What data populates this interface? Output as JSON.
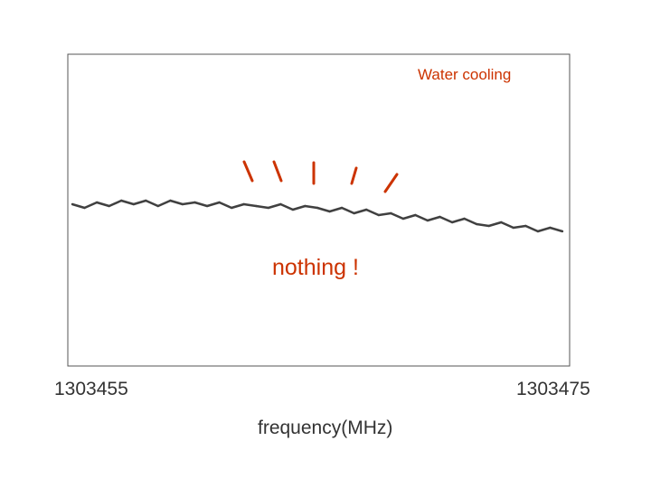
{
  "chart_data": {
    "type": "line",
    "title": "",
    "xlabel": "frequency(MHz)",
    "ylabel": "",
    "xlim": [
      1303455,
      1303475
    ],
    "ylim": [
      0,
      1
    ],
    "x_tick_labels": [
      "1303455",
      "1303475"
    ],
    "grid": false,
    "legend_placement": "top-right",
    "series": [
      {
        "name": "Water cooling",
        "color": "#404040",
        "x": [
          1303455.0,
          1303455.5,
          1303456.0,
          1303456.5,
          1303457.0,
          1303457.5,
          1303458.0,
          1303458.5,
          1303459.0,
          1303459.5,
          1303460.0,
          1303460.5,
          1303461.0,
          1303461.5,
          1303462.0,
          1303462.5,
          1303463.0,
          1303463.5,
          1303464.0,
          1303464.5,
          1303465.0,
          1303465.5,
          1303466.0,
          1303466.5,
          1303467.0,
          1303467.5,
          1303468.0,
          1303468.5,
          1303469.0,
          1303469.5,
          1303470.0,
          1303470.5,
          1303471.0,
          1303471.5,
          1303472.0,
          1303472.5,
          1303473.0,
          1303473.5,
          1303474.0,
          1303474.5,
          1303475.0
        ],
        "y": [
          0.52,
          0.5,
          0.53,
          0.51,
          0.54,
          0.52,
          0.54,
          0.51,
          0.54,
          0.52,
          0.53,
          0.51,
          0.53,
          0.5,
          0.52,
          0.51,
          0.5,
          0.52,
          0.49,
          0.51,
          0.5,
          0.48,
          0.5,
          0.47,
          0.49,
          0.46,
          0.47,
          0.44,
          0.46,
          0.43,
          0.45,
          0.42,
          0.44,
          0.41,
          0.4,
          0.42,
          0.39,
          0.4,
          0.37,
          0.39,
          0.37
        ]
      }
    ],
    "annotations": [
      {
        "text": "nothing !",
        "color": "#cc3300"
      }
    ],
    "marker_strokes": {
      "color": "#cc3300",
      "count": 5
    }
  }
}
